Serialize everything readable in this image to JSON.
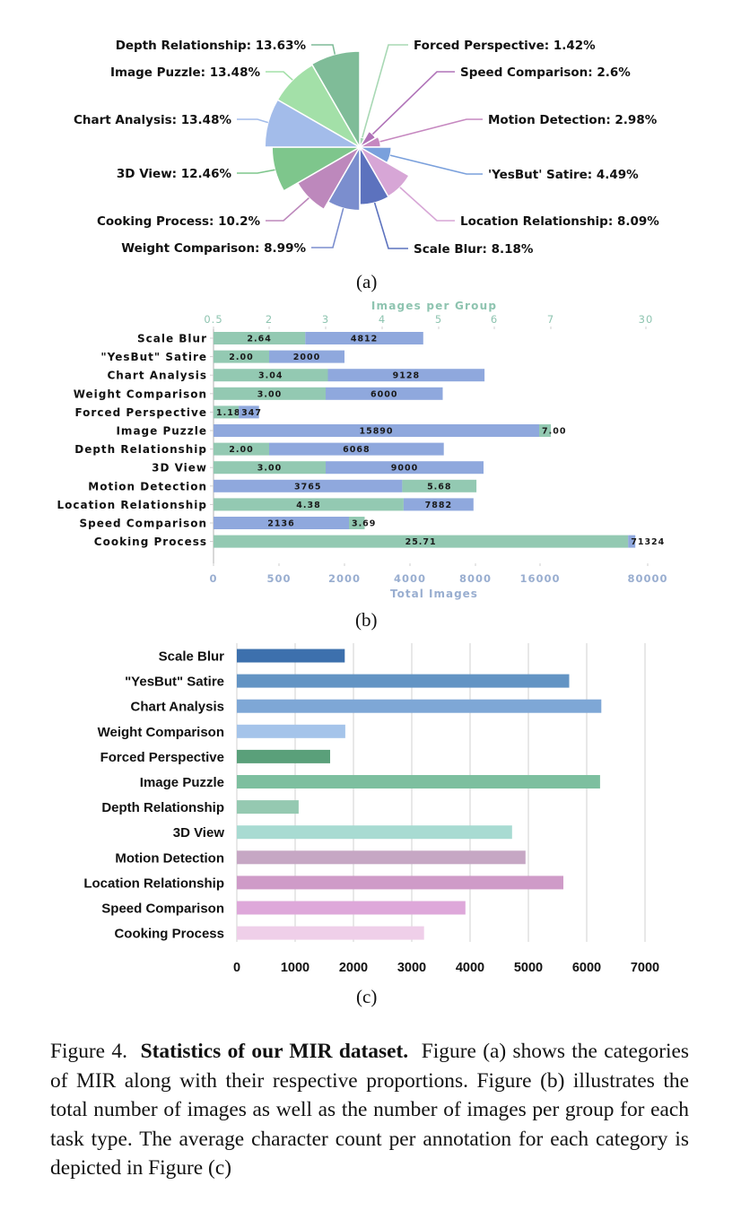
{
  "figure": {
    "sub_labels": {
      "a": "(a)",
      "b": "(b)",
      "c": "(c)"
    },
    "caption": {
      "prefix": "Figure 4.",
      "bold": "Statistics of our MIR dataset.",
      "text": "Figure (a) shows the categories of MIR along with their respective proportions. Figure (b) illustrates the total number of images as well as the number of images per group for each task type. The average character count per annotation for each category is depicted in Figure (c)"
    }
  },
  "chart_data": [
    {
      "id": "a",
      "type": "pie",
      "subtype": "rose",
      "title": "",
      "slices": [
        {
          "name": "Forced Perspective",
          "value": 1.42,
          "label": "Forced Perspective: 1.42%",
          "color": "#a8d8b4"
        },
        {
          "name": "Speed Comparison",
          "value": 2.6,
          "label": "Speed Comparison: 2.6%",
          "color": "#b073b8"
        },
        {
          "name": "Motion Detection",
          "value": 2.98,
          "label": "Motion Detection: 2.98%",
          "color": "#c688c0"
        },
        {
          "name": "'YesBut' Satire",
          "value": 4.49,
          "label": "'YesBut' Satire: 4.49%",
          "color": "#7aa0dc"
        },
        {
          "name": "Location Relationship",
          "value": 8.09,
          "label": "Location Relationship: 8.09%",
          "color": "#d7a6d6"
        },
        {
          "name": "Scale Blur",
          "value": 8.18,
          "label": "Scale Blur: 8.18%",
          "color": "#5c72be"
        },
        {
          "name": "Weight Comparison",
          "value": 8.99,
          "label": "Weight Comparison: 8.99%",
          "color": "#7b8ece"
        },
        {
          "name": "Cooking Process",
          "value": 10.2,
          "label": "Cooking Process: 10.2%",
          "color": "#bd88bc"
        },
        {
          "name": "3D View",
          "value": 12.46,
          "label": "3D View: 12.46%",
          "color": "#7ec68c"
        },
        {
          "name": "Chart Analysis",
          "value": 13.48,
          "label": "Chart Analysis: 13.48%",
          "color": "#a3bcea"
        },
        {
          "name": "Image Puzzle",
          "value": 13.48,
          "label": "Image Puzzle: 13.48%",
          "color": "#a3e0a8"
        },
        {
          "name": "Depth Relationship",
          "value": 13.63,
          "label": "Depth Relationship: 13.63%",
          "color": "#7fbc98"
        }
      ]
    },
    {
      "id": "b",
      "type": "bar",
      "orientation": "horizontal",
      "stacked": true,
      "top_axis": {
        "label": "Images per Group",
        "ticks": [
          0.5,
          2,
          3,
          4,
          5,
          6,
          7,
          30
        ],
        "tick_labels": [
          "0.5",
          "2",
          "3",
          "4",
          "5",
          "6",
          "7",
          "30"
        ],
        "color": "#8ec4b0"
      },
      "bottom_axis": {
        "label": "Total Images",
        "ticks": [
          0,
          500,
          2000,
          4000,
          8000,
          16000,
          80000
        ],
        "tick_labels": [
          "0",
          "500",
          "2000",
          "4000",
          "8000",
          "16000",
          "80000"
        ],
        "color": "#99aed0"
      },
      "categories": [
        "Scale Blur",
        "\"YesBut\" Satire",
        "Chart Analysis",
        "Weight Comparison",
        "Forced Perspective",
        "Image Puzzle",
        "Depth Relationship",
        "3D View",
        "Motion Detection",
        "Location Relationship",
        "Speed Comparison",
        "Cooking Process"
      ],
      "series": [
        {
          "name": "Images per Group",
          "color": "#93c9b2",
          "values": [
            2.64,
            2.0,
            3.04,
            3.0,
            1.18,
            7.0,
            2.0,
            3.0,
            5.68,
            4.38,
            3.69,
            25.71
          ],
          "labels": [
            "2.64",
            "2.00",
            "3.04",
            "3.00",
            "1.18",
            "7.00",
            "2.00",
            "3.00",
            "5.68",
            "4.38",
            "3.69",
            "25.71"
          ]
        },
        {
          "name": "Total Images",
          "color": "#8fa8dd",
          "values": [
            4812,
            2000,
            9128,
            6000,
            347,
            15890,
            6068,
            9000,
            3765,
            7882,
            2136,
            71324
          ],
          "labels": [
            "4812",
            "2000",
            "9128",
            "6000",
            "347",
            "15890",
            "6068",
            "9000",
            "3765",
            "7882",
            "2136",
            "71324"
          ]
        }
      ],
      "first_segment": [
        "group",
        "group",
        "group",
        "group",
        "group",
        "total",
        "group",
        "group",
        "total",
        "group",
        "total",
        "group"
      ]
    },
    {
      "id": "c",
      "type": "bar",
      "orientation": "horizontal",
      "xlabel": "",
      "ylabel": "",
      "xlim": [
        0,
        7000
      ],
      "x_ticks": [
        0,
        1000,
        2000,
        3000,
        4000,
        5000,
        6000,
        7000
      ],
      "x_tick_labels": [
        "0",
        "1000",
        "2000",
        "3000",
        "4000",
        "5000",
        "6000",
        "7000"
      ],
      "grid": true,
      "categories": [
        "Scale Blur",
        "\"YesBut\" Satire",
        "Chart Analysis",
        "Weight Comparison",
        "Forced Perspective",
        "Image Puzzle",
        "Depth Relationship",
        "3D View",
        "Motion Detection",
        "Location Relationship",
        "Speed Comparison",
        "Cooking Process"
      ],
      "values": [
        1850,
        5700,
        6250,
        1860,
        1600,
        6230,
        1060,
        4720,
        4950,
        5600,
        3920,
        3210
      ],
      "colors": [
        "#3d70ad",
        "#6394c4",
        "#7ea7d6",
        "#a5c4ea",
        "#5aa07a",
        "#7dbf9f",
        "#95c9b1",
        "#a8dbd2",
        "#c6a7c4",
        "#cf9bc8",
        "#dea8da",
        "#efcfe9"
      ]
    }
  ]
}
